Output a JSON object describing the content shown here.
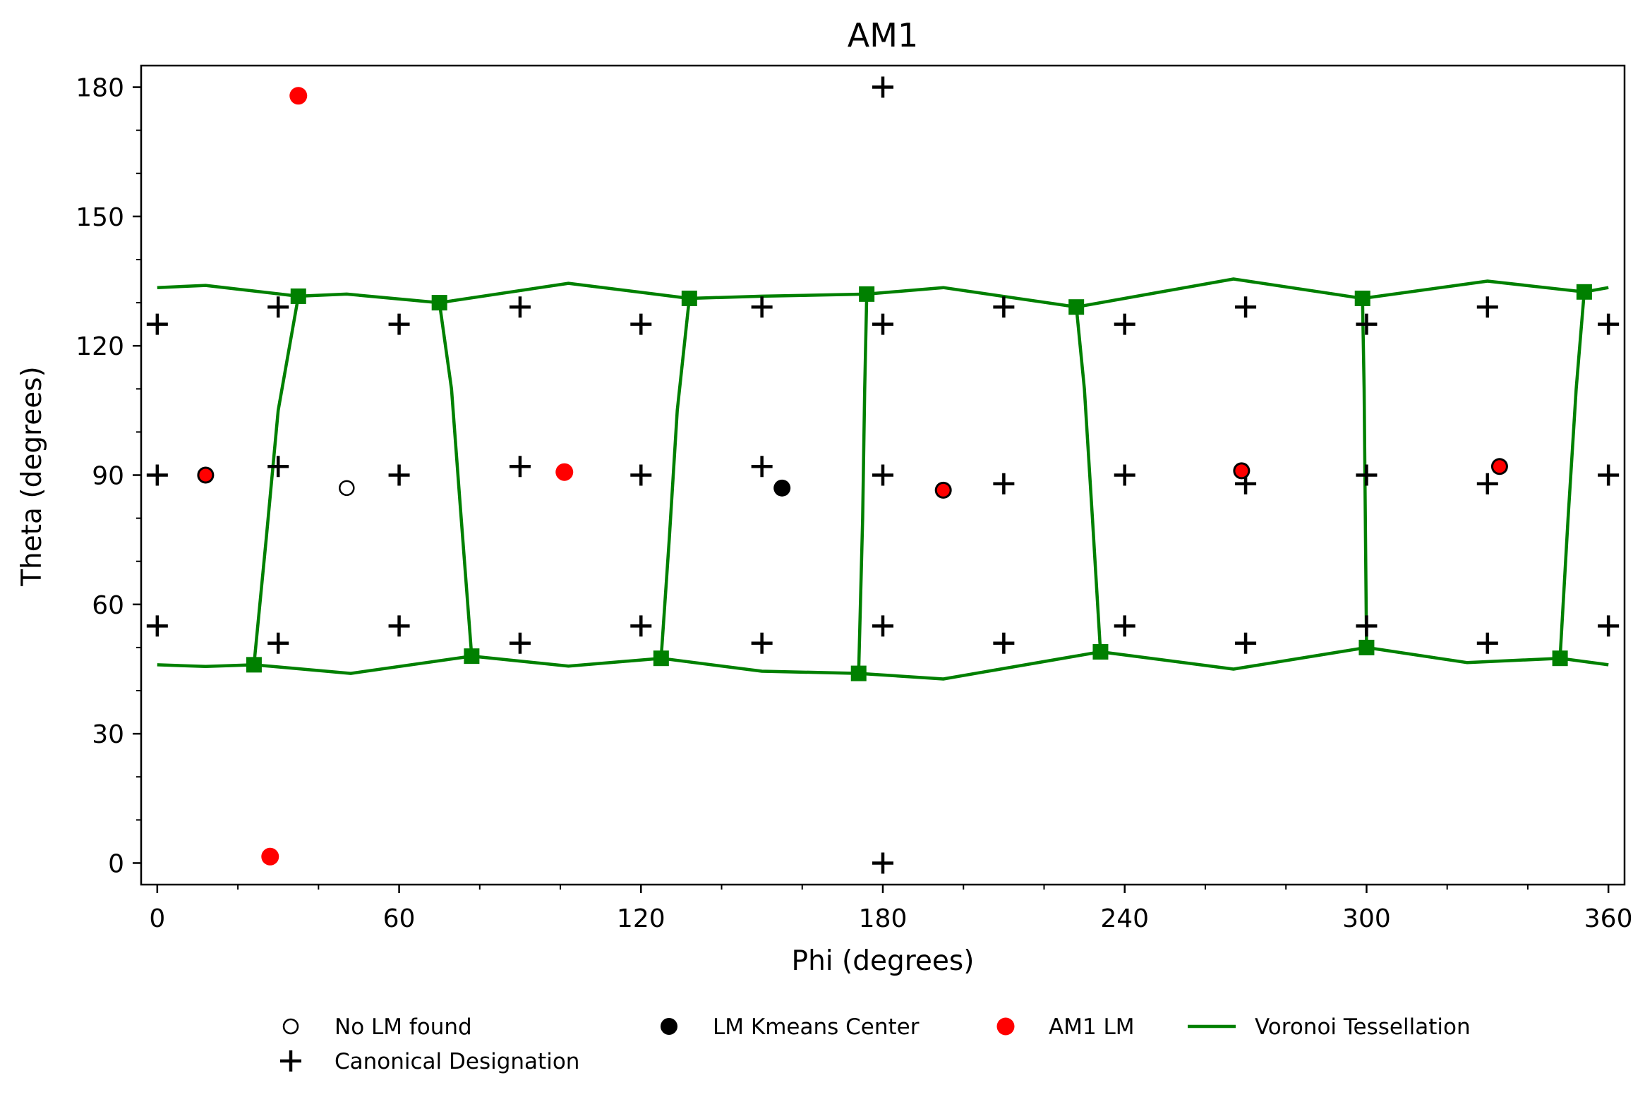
{
  "chart_data": {
    "type": "scatter",
    "title": "AM1",
    "xlabel": "Phi (degrees)",
    "ylabel": "Theta (degrees)",
    "xlim": [
      -4,
      364
    ],
    "ylim": [
      185,
      -5
    ],
    "y_inverted": true,
    "grid": false,
    "legend_placement": "bottom-center",
    "xticks": [
      0,
      60,
      120,
      180,
      240,
      300,
      360
    ],
    "xtick_labels": [
      "0",
      "60",
      "120",
      "180",
      "240",
      "300",
      "360"
    ],
    "yticks": [
      0,
      30,
      60,
      90,
      120,
      150,
      180
    ],
    "ytick_labels": [
      "0",
      "30",
      "60",
      "90",
      "120",
      "150",
      "180"
    ],
    "colors": {
      "voronoi": "#008000",
      "am1_lm": "#ff0000",
      "black": "#000000"
    },
    "legend": [
      {
        "label": "No LM found",
        "marker": "open-circle"
      },
      {
        "label": "LM Kmeans Center",
        "marker": "filled-circle"
      },
      {
        "label": "AM1 LM",
        "marker": "red-circle"
      },
      {
        "label": "Voronoi Tessellation",
        "marker": "line"
      },
      {
        "label": "Canonical Designation",
        "marker": "plus"
      }
    ],
    "series": [
      {
        "name": "Canonical Designation",
        "marker": "plus",
        "points": [
          [
            180,
            0
          ],
          [
            180,
            180
          ],
          [
            0,
            55
          ],
          [
            30,
            51
          ],
          [
            60,
            55
          ],
          [
            90,
            51
          ],
          [
            120,
            55
          ],
          [
            150,
            51
          ],
          [
            180,
            55
          ],
          [
            210,
            51
          ],
          [
            240,
            55
          ],
          [
            270,
            51
          ],
          [
            300,
            55
          ],
          [
            330,
            51
          ],
          [
            360,
            55
          ],
          [
            0,
            90
          ],
          [
            30,
            92
          ],
          [
            60,
            90
          ],
          [
            90,
            92
          ],
          [
            120,
            90
          ],
          [
            150,
            92
          ],
          [
            180,
            90
          ],
          [
            210,
            88
          ],
          [
            240,
            90
          ],
          [
            270,
            88
          ],
          [
            300,
            90
          ],
          [
            330,
            88
          ],
          [
            360,
            90
          ],
          [
            0,
            125
          ],
          [
            30,
            129
          ],
          [
            60,
            125
          ],
          [
            90,
            129
          ],
          [
            120,
            125
          ],
          [
            150,
            129
          ],
          [
            180,
            125
          ],
          [
            210,
            129
          ],
          [
            240,
            125
          ],
          [
            270,
            129
          ],
          [
            300,
            125
          ],
          [
            330,
            129
          ],
          [
            360,
            125
          ]
        ]
      },
      {
        "name": "No LM found",
        "marker": "open-circle",
        "points": [
          [
            47,
            87
          ]
        ]
      },
      {
        "name": "LM Kmeans Center",
        "marker": "filled-circle",
        "points": [
          [
            155,
            87
          ],
          [
            195,
            86.5
          ],
          [
            12,
            90
          ],
          [
            269,
            91
          ],
          [
            333,
            92
          ]
        ]
      },
      {
        "name": "AM1 LM",
        "marker": "red-circle",
        "points": [
          [
            28,
            1.5
          ],
          [
            35,
            178
          ],
          [
            12,
            90
          ],
          [
            101,
            90.7
          ],
          [
            195,
            86.5
          ],
          [
            269,
            91
          ],
          [
            333,
            92
          ]
        ]
      },
      {
        "name": "Voronoi Tessellation",
        "marker": "line",
        "vertices": [
          [
            24,
            46
          ],
          [
            78,
            48
          ],
          [
            125,
            47.5
          ],
          [
            174,
            44
          ],
          [
            234,
            49
          ],
          [
            300,
            50
          ],
          [
            348,
            47.5
          ],
          [
            35,
            131.5
          ],
          [
            70,
            130
          ],
          [
            132,
            131
          ],
          [
            176,
            132
          ],
          [
            228,
            129
          ],
          [
            299,
            131
          ],
          [
            354,
            132.5
          ]
        ],
        "top_curve": [
          [
            0,
            46
          ],
          [
            12,
            45.6
          ],
          [
            24,
            46
          ],
          [
            48,
            44
          ],
          [
            78,
            48
          ],
          [
            102,
            45.7
          ],
          [
            125,
            47.5
          ],
          [
            150,
            44.5
          ],
          [
            174,
            44
          ],
          [
            195,
            42.7
          ],
          [
            234,
            49
          ],
          [
            267,
            45
          ],
          [
            300,
            50
          ],
          [
            325,
            46.5
          ],
          [
            348,
            47.5
          ],
          [
            360,
            46
          ]
        ],
        "bottom_curve": [
          [
            0,
            133.5
          ],
          [
            12,
            134
          ],
          [
            35,
            131.5
          ],
          [
            47,
            132
          ],
          [
            70,
            130
          ],
          [
            102,
            134.5
          ],
          [
            132,
            131
          ],
          [
            150,
            131.5
          ],
          [
            176,
            132
          ],
          [
            195,
            133.5
          ],
          [
            228,
            129
          ],
          [
            267,
            135.5
          ],
          [
            299,
            131
          ],
          [
            330,
            135
          ],
          [
            354,
            132.5
          ],
          [
            360,
            133.5
          ]
        ],
        "edges": [
          [
            [
              24,
              46
            ],
            [
              27,
              75
            ],
            [
              30,
              105
            ],
            [
              35,
              131.5
            ]
          ],
          [
            [
              78,
              48
            ],
            [
              75,
              85
            ],
            [
              73,
              110
            ],
            [
              70,
              130
            ]
          ],
          [
            [
              125,
              47.5
            ],
            [
              127,
              75
            ],
            [
              129,
              105
            ],
            [
              132,
              131
            ]
          ],
          [
            [
              174,
              44
            ],
            [
              175,
              80
            ],
            [
              175.5,
              110
            ],
            [
              176,
              132
            ]
          ],
          [
            [
              234,
              49
            ],
            [
              232,
              80
            ],
            [
              230,
              110
            ],
            [
              228,
              129
            ]
          ],
          [
            [
              300,
              50
            ],
            [
              299.7,
              80
            ],
            [
              299.4,
              110
            ],
            [
              299,
              131
            ]
          ],
          [
            [
              348,
              47.5
            ],
            [
              350,
              80
            ],
            [
              352,
              110
            ],
            [
              354,
              132.5
            ]
          ]
        ]
      }
    ]
  }
}
